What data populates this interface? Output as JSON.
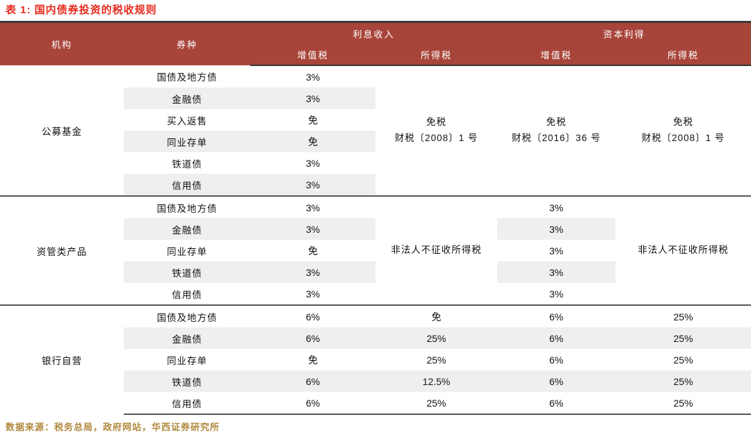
{
  "title": "表 1:  国内债券投资的税收规则",
  "source": "数据来源：税务总局，政府网站，华西证券研究所",
  "colors": {
    "header_bg": "#a8453a",
    "title_red": "#e8291c",
    "source_gold": "#b1893f",
    "stripe_gray": "#efefef",
    "border_dark": "#3a3a3a"
  },
  "headers": {
    "institution": "机构",
    "bond_type": "券种",
    "interest_income": "利息收入",
    "capital_gains": "资本利得",
    "vat": "增值税",
    "income_tax": "所得税"
  },
  "groups": [
    {
      "institution": "公募基金",
      "rows": [
        {
          "bond": "国债及地方债",
          "interest_vat": "3%"
        },
        {
          "bond": "金融债",
          "interest_vat": "3%"
        },
        {
          "bond": "买入返售",
          "interest_vat": "免"
        },
        {
          "bond": "同业存单",
          "interest_vat": "免"
        },
        {
          "bond": "铁道债",
          "interest_vat": "3%"
        },
        {
          "bond": "信用债",
          "interest_vat": "3%"
        }
      ],
      "merged": {
        "interest_tax": "免税\n财税〔2008〕1 号",
        "capital_vat": "免税\n财税〔2016〕36 号",
        "capital_tax": "免税\n财税〔2008〕1 号"
      }
    },
    {
      "institution": "资管类产品",
      "rows": [
        {
          "bond": "国债及地方债",
          "interest_vat": "3%",
          "capital_vat": "3%"
        },
        {
          "bond": "金融债",
          "interest_vat": "3%",
          "capital_vat": "3%"
        },
        {
          "bond": "同业存单",
          "interest_vat": "免",
          "capital_vat": "3%"
        },
        {
          "bond": "铁道债",
          "interest_vat": "3%",
          "capital_vat": "3%"
        },
        {
          "bond": "信用债",
          "interest_vat": "3%",
          "capital_vat": "3%"
        }
      ],
      "merged": {
        "interest_tax": "非法人不征收所得税",
        "capital_tax": "非法人不征收所得税"
      }
    },
    {
      "institution": "银行自营",
      "rows": [
        {
          "bond": "国债及地方债",
          "interest_vat": "6%",
          "interest_tax": "免",
          "capital_vat": "6%",
          "capital_tax": "25%"
        },
        {
          "bond": "金融债",
          "interest_vat": "6%",
          "interest_tax": "25%",
          "capital_vat": "6%",
          "capital_tax": "25%"
        },
        {
          "bond": "同业存单",
          "interest_vat": "免",
          "interest_tax": "25%",
          "capital_vat": "6%",
          "capital_tax": "25%"
        },
        {
          "bond": "铁道债",
          "interest_vat": "6%",
          "interest_tax": "12.5%",
          "capital_vat": "6%",
          "capital_tax": "25%"
        },
        {
          "bond": "信用债",
          "interest_vat": "6%",
          "interest_tax": "25%",
          "capital_vat": "6%",
          "capital_tax": "25%"
        }
      ]
    }
  ]
}
